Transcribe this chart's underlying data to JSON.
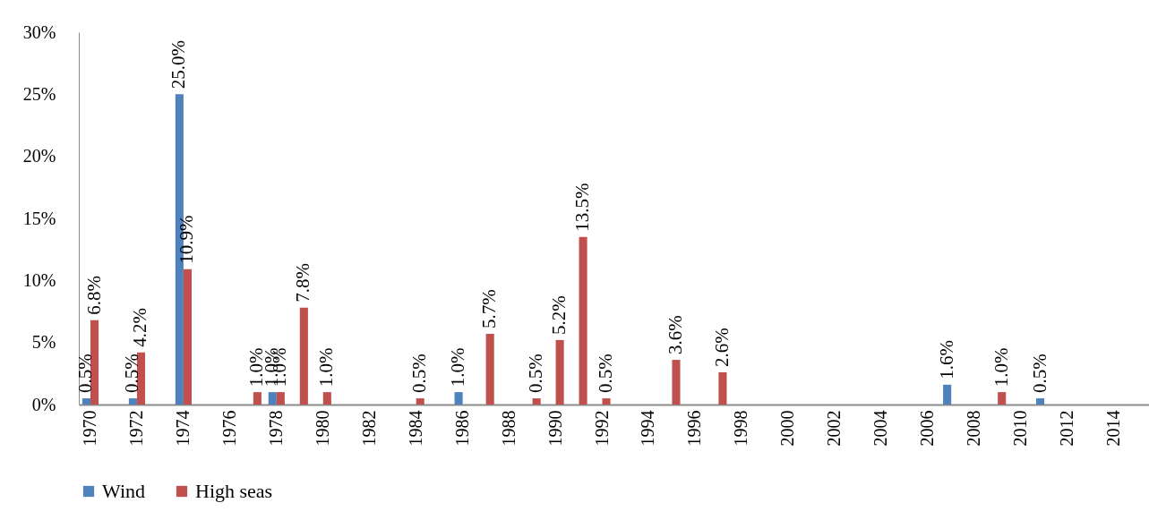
{
  "chart_data": {
    "type": "bar",
    "categories": [
      "1970",
      null,
      "1972",
      null,
      "1974",
      null,
      "1976",
      null,
      "1978",
      null,
      "1980",
      null,
      "1982",
      null,
      "1984",
      null,
      "1986",
      null,
      "1988",
      null,
      "1990",
      null,
      "1992",
      null,
      "1994",
      null,
      "1996",
      null,
      "1998",
      null,
      "2000",
      null,
      "2002",
      null,
      "2004",
      null,
      "2006",
      null,
      "2008",
      null,
      "2010",
      null,
      "2012",
      null,
      "2014",
      null
    ],
    "series": [
      {
        "name": "Wind",
        "color": "#4f81bd",
        "values": [
          0.5,
          null,
          0.5,
          null,
          25.0,
          null,
          null,
          null,
          1.0,
          null,
          null,
          null,
          null,
          null,
          null,
          null,
          1.0,
          null,
          null,
          null,
          null,
          null,
          null,
          null,
          null,
          null,
          null,
          null,
          null,
          null,
          null,
          null,
          null,
          null,
          null,
          null,
          null,
          1.6,
          null,
          null,
          null,
          0.5,
          null,
          null,
          null,
          null
        ],
        "value_labels": [
          "0.5%",
          null,
          "0.5%",
          null,
          "25.0%",
          null,
          null,
          null,
          "1.0%",
          null,
          null,
          null,
          null,
          null,
          null,
          null,
          "1.0%",
          null,
          null,
          null,
          null,
          null,
          null,
          null,
          null,
          null,
          null,
          null,
          null,
          null,
          null,
          null,
          null,
          null,
          null,
          null,
          null,
          "1.6%",
          null,
          null,
          null,
          "0.5%",
          null,
          null,
          null,
          null
        ]
      },
      {
        "name": "High seas",
        "color": "#c0504d",
        "values": [
          6.8,
          null,
          4.2,
          null,
          10.9,
          null,
          null,
          1.0,
          1.0,
          7.8,
          1.0,
          null,
          null,
          null,
          0.5,
          null,
          null,
          5.7,
          null,
          0.5,
          5.2,
          13.5,
          0.5,
          null,
          null,
          3.6,
          null,
          2.6,
          null,
          null,
          null,
          null,
          null,
          null,
          null,
          null,
          null,
          null,
          null,
          1.0,
          null,
          null,
          null,
          null,
          null,
          null
        ],
        "value_labels": [
          "6.8%",
          null,
          "4.2%",
          null,
          "10.9%",
          null,
          null,
          "1.0%",
          "1.0%",
          "7.8%",
          "1.0%",
          null,
          null,
          null,
          "0.5%",
          null,
          null,
          "5.7%",
          null,
          "0.5%",
          "5.2%",
          "13.5%",
          "0.5%",
          null,
          null,
          "3.6%",
          null,
          "2.6%",
          null,
          null,
          null,
          null,
          null,
          null,
          null,
          null,
          null,
          null,
          null,
          "1.0%",
          null,
          null,
          null,
          null,
          null,
          null
        ]
      }
    ],
    "ylim": [
      0,
      30
    ],
    "yticks": [
      {
        "value": 0,
        "label": "0%"
      },
      {
        "value": 5,
        "label": "5%"
      },
      {
        "value": 10,
        "label": "10%"
      },
      {
        "value": 15,
        "label": "15%"
      },
      {
        "value": 20,
        "label": "20%"
      },
      {
        "value": 25,
        "label": "25%"
      },
      {
        "value": 30,
        "label": "30%"
      }
    ],
    "grid": false,
    "legend": "bottom"
  }
}
